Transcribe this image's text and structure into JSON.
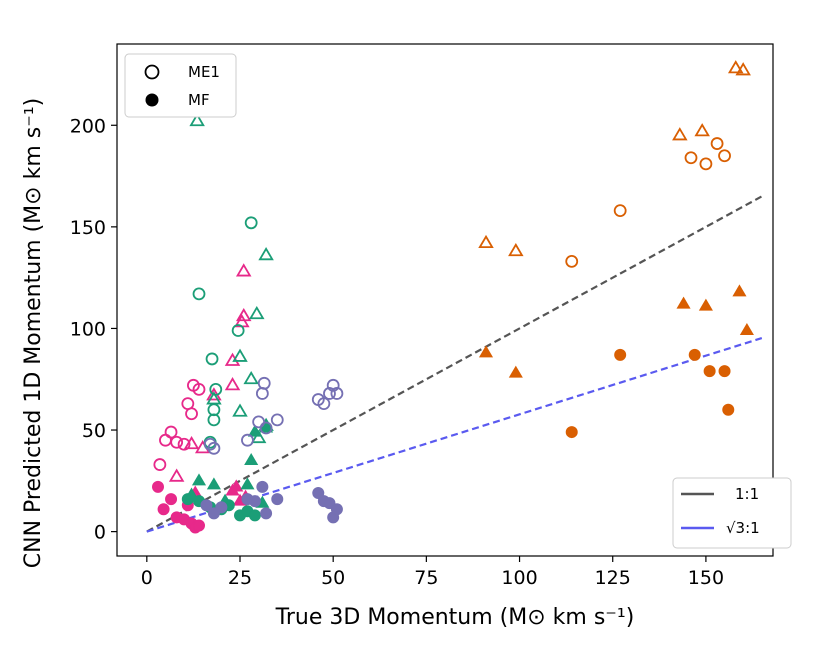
{
  "chart_data": {
    "type": "scatter",
    "xlabel": "True 3D Momentum (M⊙ km s⁻¹)",
    "ylabel": "CNN Predicted 1D Momentum (M⊙ km s⁻¹)",
    "xlim": [
      -8,
      168
    ],
    "ylim": [
      -12,
      240
    ],
    "xticks": [
      0,
      25,
      50,
      75,
      100,
      125,
      150
    ],
    "yticks": [
      0,
      50,
      100,
      150,
      200
    ],
    "marker_legend": [
      {
        "label": "ME1",
        "style": "open"
      },
      {
        "label": "MF",
        "style": "filled"
      }
    ],
    "line_legend": [
      {
        "label": "1:1",
        "color": "#555555",
        "slope": 1
      },
      {
        "label": "√3:1",
        "color": "#5a5af0",
        "slope": 0.57735
      }
    ],
    "series": [
      {
        "name": "pink",
        "color": "#e7298a",
        "points": [
          {
            "x": 3.5,
            "y": 33,
            "m": "oc"
          },
          {
            "x": 5,
            "y": 45,
            "m": "oc"
          },
          {
            "x": 6.5,
            "y": 49,
            "m": "oc"
          },
          {
            "x": 8,
            "y": 44,
            "m": "oc"
          },
          {
            "x": 10,
            "y": 43,
            "m": "oc"
          },
          {
            "x": 11,
            "y": 63,
            "m": "oc"
          },
          {
            "x": 12,
            "y": 58,
            "m": "oc"
          },
          {
            "x": 12.5,
            "y": 72,
            "m": "oc"
          },
          {
            "x": 14,
            "y": 70,
            "m": "oc"
          },
          {
            "x": 8,
            "y": 27,
            "m": "ot"
          },
          {
            "x": 12,
            "y": 43,
            "m": "ot"
          },
          {
            "x": 15,
            "y": 41,
            "m": "ot"
          },
          {
            "x": 18,
            "y": 67,
            "m": "ot"
          },
          {
            "x": 23,
            "y": 72,
            "m": "ot"
          },
          {
            "x": 23,
            "y": 84,
            "m": "ot"
          },
          {
            "x": 25.5,
            "y": 103,
            "m": "ot"
          },
          {
            "x": 26,
            "y": 106,
            "m": "ot"
          },
          {
            "x": 26,
            "y": 128,
            "m": "ot"
          },
          {
            "x": 3,
            "y": 22,
            "m": "fc"
          },
          {
            "x": 4.5,
            "y": 11,
            "m": "fc"
          },
          {
            "x": 6.5,
            "y": 16,
            "m": "fc"
          },
          {
            "x": 8,
            "y": 7,
            "m": "fc"
          },
          {
            "x": 10,
            "y": 6,
            "m": "fc"
          },
          {
            "x": 11,
            "y": 13,
            "m": "fc"
          },
          {
            "x": 12,
            "y": 4,
            "m": "fc"
          },
          {
            "x": 13,
            "y": 2,
            "m": "fc"
          },
          {
            "x": 14,
            "y": 3,
            "m": "fc"
          },
          {
            "x": 13,
            "y": 19,
            "m": "ft"
          },
          {
            "x": 23,
            "y": 20,
            "m": "ft"
          },
          {
            "x": 25,
            "y": 15,
            "m": "ft"
          },
          {
            "x": 26.5,
            "y": 17,
            "m": "ft"
          },
          {
            "x": 24,
            "y": 22,
            "m": "ft"
          }
        ]
      },
      {
        "name": "teal",
        "color": "#1b9e77",
        "points": [
          {
            "x": 14,
            "y": 117,
            "m": "oc"
          },
          {
            "x": 17,
            "y": 44,
            "m": "oc"
          },
          {
            "x": 17.5,
            "y": 85,
            "m": "oc"
          },
          {
            "x": 18,
            "y": 60,
            "m": "oc"
          },
          {
            "x": 18,
            "y": 55,
            "m": "oc"
          },
          {
            "x": 18.5,
            "y": 70,
            "m": "oc"
          },
          {
            "x": 24.5,
            "y": 99,
            "m": "oc"
          },
          {
            "x": 28,
            "y": 152,
            "m": "oc"
          },
          {
            "x": 13.5,
            "y": 202,
            "m": "ot"
          },
          {
            "x": 18,
            "y": 65,
            "m": "ot"
          },
          {
            "x": 25,
            "y": 86,
            "m": "ot"
          },
          {
            "x": 25,
            "y": 59,
            "m": "ot"
          },
          {
            "x": 28,
            "y": 75,
            "m": "ot"
          },
          {
            "x": 29.5,
            "y": 107,
            "m": "ot"
          },
          {
            "x": 30,
            "y": 46,
            "m": "ot"
          },
          {
            "x": 32,
            "y": 136,
            "m": "ot"
          },
          {
            "x": 32,
            "y": 52,
            "m": "ot"
          },
          {
            "x": 11,
            "y": 16,
            "m": "fc"
          },
          {
            "x": 14,
            "y": 15,
            "m": "fc"
          },
          {
            "x": 17,
            "y": 12,
            "m": "fc"
          },
          {
            "x": 20,
            "y": 11,
            "m": "fc"
          },
          {
            "x": 22,
            "y": 13,
            "m": "fc"
          },
          {
            "x": 25,
            "y": 8,
            "m": "fc"
          },
          {
            "x": 27,
            "y": 10,
            "m": "fc"
          },
          {
            "x": 29,
            "y": 8,
            "m": "fc"
          },
          {
            "x": 12,
            "y": 18,
            "m": "ft"
          },
          {
            "x": 14,
            "y": 25,
            "m": "ft"
          },
          {
            "x": 18,
            "y": 23,
            "m": "ft"
          },
          {
            "x": 21,
            "y": 15,
            "m": "ft"
          },
          {
            "x": 27,
            "y": 23,
            "m": "ft"
          },
          {
            "x": 28,
            "y": 35,
            "m": "ft"
          },
          {
            "x": 29,
            "y": 49,
            "m": "ft"
          },
          {
            "x": 31,
            "y": 14,
            "m": "ft"
          },
          {
            "x": 32,
            "y": 51,
            "m": "ft"
          }
        ]
      },
      {
        "name": "purple",
        "color": "#7570b3",
        "points": [
          {
            "x": 17,
            "y": 43,
            "m": "oc"
          },
          {
            "x": 18,
            "y": 41,
            "m": "oc"
          },
          {
            "x": 27,
            "y": 45,
            "m": "oc"
          },
          {
            "x": 30,
            "y": 54,
            "m": "oc"
          },
          {
            "x": 31,
            "y": 68,
            "m": "oc"
          },
          {
            "x": 31.5,
            "y": 73,
            "m": "oc"
          },
          {
            "x": 32,
            "y": 51,
            "m": "oc"
          },
          {
            "x": 35,
            "y": 55,
            "m": "oc"
          },
          {
            "x": 46,
            "y": 65,
            "m": "oc"
          },
          {
            "x": 47.5,
            "y": 63,
            "m": "oc"
          },
          {
            "x": 49,
            "y": 68,
            "m": "oc"
          },
          {
            "x": 50,
            "y": 72,
            "m": "oc"
          },
          {
            "x": 51,
            "y": 68,
            "m": "oc"
          },
          {
            "x": 16,
            "y": 13,
            "m": "fc"
          },
          {
            "x": 18,
            "y": 9,
            "m": "fc"
          },
          {
            "x": 20,
            "y": 12,
            "m": "fc"
          },
          {
            "x": 27,
            "y": 16,
            "m": "fc"
          },
          {
            "x": 29,
            "y": 15,
            "m": "fc"
          },
          {
            "x": 31,
            "y": 22,
            "m": "fc"
          },
          {
            "x": 32,
            "y": 9,
            "m": "fc"
          },
          {
            "x": 35,
            "y": 16,
            "m": "fc"
          },
          {
            "x": 46,
            "y": 19,
            "m": "fc"
          },
          {
            "x": 47.5,
            "y": 15,
            "m": "fc"
          },
          {
            "x": 49,
            "y": 14,
            "m": "fc"
          },
          {
            "x": 50,
            "y": 7,
            "m": "fc"
          },
          {
            "x": 51,
            "y": 11,
            "m": "fc"
          }
        ]
      },
      {
        "name": "orange",
        "color": "#d95f02",
        "points": [
          {
            "x": 114,
            "y": 133,
            "m": "oc"
          },
          {
            "x": 127,
            "y": 158,
            "m": "oc"
          },
          {
            "x": 146,
            "y": 184,
            "m": "oc"
          },
          {
            "x": 150,
            "y": 181,
            "m": "oc"
          },
          {
            "x": 153,
            "y": 191,
            "m": "oc"
          },
          {
            "x": 155,
            "y": 185,
            "m": "oc"
          },
          {
            "x": 91,
            "y": 142,
            "m": "ot"
          },
          {
            "x": 99,
            "y": 138,
            "m": "ot"
          },
          {
            "x": 143,
            "y": 195,
            "m": "ot"
          },
          {
            "x": 149,
            "y": 197,
            "m": "ot"
          },
          {
            "x": 158,
            "y": 228,
            "m": "ot"
          },
          {
            "x": 160,
            "y": 227,
            "m": "ot"
          },
          {
            "x": 114,
            "y": 49,
            "m": "fc"
          },
          {
            "x": 127,
            "y": 87,
            "m": "fc"
          },
          {
            "x": 147,
            "y": 87,
            "m": "fc"
          },
          {
            "x": 151,
            "y": 79,
            "m": "fc"
          },
          {
            "x": 155,
            "y": 79,
            "m": "fc"
          },
          {
            "x": 156,
            "y": 60,
            "m": "fc"
          },
          {
            "x": 91,
            "y": 88,
            "m": "ft"
          },
          {
            "x": 99,
            "y": 78,
            "m": "ft"
          },
          {
            "x": 144,
            "y": 112,
            "m": "ft"
          },
          {
            "x": 150,
            "y": 111,
            "m": "ft"
          },
          {
            "x": 159,
            "y": 118,
            "m": "ft"
          },
          {
            "x": 161,
            "y": 99,
            "m": "ft"
          }
        ]
      }
    ]
  }
}
